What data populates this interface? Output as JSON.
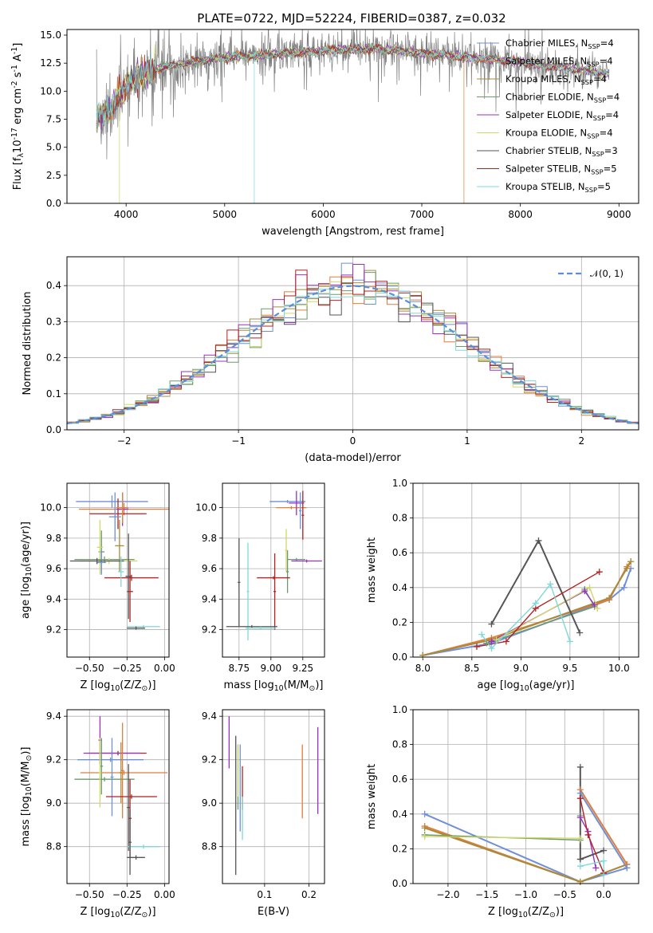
{
  "figure_title": "PLATE=0722, MJD=52224, FIBERID=0387, z=0.032",
  "legend_labels": [
    "Chabrier MILES, N$_{SSP}$=4",
    "Salpeter MILES, N$_{SSP}$=4",
    "Kroupa MILES, N$_{SSP}$=4",
    "Chabrier ELODIE, N$_{SSP}$=4",
    "Salpeter ELODIE, N$_{SSP}$=4",
    "Kroupa ELODIE, N$_{SSP}$=4",
    "Chabrier STELIB, N$_{SSP}$=3",
    "Salpeter STELIB, N$_{SSP}$=5",
    "Kroupa STELIB, N$_{SSP}$=5"
  ],
  "series_colors": [
    "#6f8fd8",
    "#e07e3a",
    "#a88a3c",
    "#6b9a6b",
    "#9b30c0",
    "#d0d86a",
    "#555555",
    "#b22222",
    "#7fd8d8"
  ],
  "chart_data": [
    {
      "id": "spectrum",
      "type": "line",
      "title": "PLATE=0722, MJD=52224, FIBERID=0387, z=0.032",
      "xlabel": "wavelength [Angstrom, rest frame]",
      "ylabel": "Flux [f$_\\lambda$10$^{-17}$ erg cm$^{-2}$ s$^{-1}$ A$^{-1}$]",
      "xlim": [
        3400,
        9200
      ],
      "ylim": [
        0,
        15.5
      ],
      "xticks": [
        4000,
        5000,
        6000,
        7000,
        8000,
        9000
      ],
      "yticks": [
        "0.0",
        "2.5",
        "5.0",
        "7.5",
        "10.0",
        "12.5",
        "15.0"
      ],
      "grid": false,
      "legend": "upper right",
      "data_range": [
        3700,
        8900
      ],
      "continuum_points": [
        [
          3700,
          7.5
        ],
        [
          3850,
          8.5
        ],
        [
          4000,
          10.5
        ],
        [
          4200,
          11.8
        ],
        [
          4600,
          12.5
        ],
        [
          5000,
          13.0
        ],
        [
          5500,
          13.3
        ],
        [
          6000,
          13.6
        ],
        [
          6500,
          13.8
        ],
        [
          7000,
          13.4
        ],
        [
          7500,
          13.0
        ],
        [
          8000,
          12.6
        ],
        [
          8500,
          12.0
        ],
        [
          8900,
          11.5
        ]
      ]
    },
    {
      "id": "residual-hist",
      "type": "histogram",
      "xlabel": "(data-model)/error",
      "ylabel": "Normed distribution",
      "xlim": [
        -2.5,
        2.5
      ],
      "ylim": [
        0,
        0.48
      ],
      "xticks": [
        "−2",
        "−1",
        "0",
        "1",
        "2"
      ],
      "yticks": [
        "0.0",
        "0.1",
        "0.2",
        "0.3",
        "0.4"
      ],
      "grid": true,
      "legend": "upper right",
      "reference_curve": {
        "name": "𝒩(0, 1)",
        "mean": 0,
        "sigma": 1,
        "color": "#5b8ddb"
      }
    },
    {
      "id": "age-vs-Z",
      "type": "errorbar",
      "xlabel": "Z [log$_{10}$(Z/Z$_\\odot$)]",
      "ylabel": "age  [log$_{10}$(age/yr)]",
      "xlim": [
        -0.65,
        0.03
      ],
      "ylim": [
        9.02,
        10.16
      ],
      "xticks": [
        "−0.50",
        "−0.25",
        "0.00"
      ],
      "yticks": [
        "9.2",
        "9.4",
        "9.6",
        "9.8",
        "10.0"
      ],
      "grid": true,
      "points": [
        {
          "x": -0.35,
          "xerr": 0.24,
          "y": 10.04,
          "yerr": 0.04,
          "c": 0
        },
        {
          "x": -0.27,
          "xerr": 0.3,
          "y": 9.99,
          "yerr": 0.04,
          "c": 1
        },
        {
          "x": -0.31,
          "xerr": 0.19,
          "y": 9.96,
          "yerr": 0.1,
          "c": 7
        },
        {
          "x": -0.28,
          "xerr": 0.04,
          "y": 9.99,
          "yerr": 0.11,
          "c": 4
        },
        {
          "x": -0.28,
          "xerr": 0.04,
          "y": 10.0,
          "yerr": 0.1,
          "c": 1
        },
        {
          "x": -0.33,
          "xerr": 0.04,
          "y": 9.94,
          "yerr": 0.16,
          "c": 0
        },
        {
          "x": -0.42,
          "xerr": 0.02,
          "y": 9.71,
          "yerr": 0.14,
          "c": 3
        },
        {
          "x": -0.43,
          "xerr": 0.02,
          "y": 9.74,
          "yerr": 0.18,
          "c": 5
        },
        {
          "x": -0.42,
          "xerr": 0.03,
          "y": 9.64,
          "yerr": 0.08,
          "c": 0
        },
        {
          "x": -0.3,
          "xerr": 0.03,
          "y": 9.75,
          "yerr": 0.17,
          "c": 2
        },
        {
          "x": -0.4,
          "xerr": 0.2,
          "y": 9.66,
          "yerr": 0.02,
          "c": 3
        },
        {
          "x": -0.37,
          "xerr": 0.19,
          "y": 9.65,
          "yerr": 0.02,
          "c": 5
        },
        {
          "x": -0.45,
          "xerr": 0.18,
          "y": 9.65,
          "yerr": 0.02,
          "c": 6
        },
        {
          "x": -0.22,
          "xerr": 0.18,
          "y": 9.54,
          "yerr": 0.02,
          "c": 7
        },
        {
          "x": -0.29,
          "xerr": 0.02,
          "y": 9.58,
          "yerr": 0.1,
          "c": 8
        },
        {
          "x": -0.24,
          "xerr": 0.02,
          "y": 9.55,
          "yerr": 0.28,
          "c": 6
        },
        {
          "x": -0.23,
          "xerr": 0.02,
          "y": 9.45,
          "yerr": 0.2,
          "c": 7
        },
        {
          "x": -0.14,
          "xerr": 0.11,
          "y": 9.22,
          "yerr": 0.01,
          "c": 8
        },
        {
          "x": -0.19,
          "xerr": 0.06,
          "y": 9.21,
          "yerr": 0.01,
          "c": 6
        }
      ]
    },
    {
      "id": "age-vs-mass",
      "type": "errorbar",
      "xlabel": "mass [log$_{10}$(M/M$_\\odot$)]",
      "ylabel": "",
      "xlim": [
        8.62,
        9.42
      ],
      "ylim": [
        9.02,
        10.16
      ],
      "xticks": [
        "8.75",
        "9.00",
        "9.25"
      ],
      "yticks": [
        "9.2",
        "9.4",
        "9.6",
        "9.8",
        "10.0"
      ],
      "grid": true,
      "points": [
        {
          "x": 9.13,
          "xerr": 0.14,
          "y": 10.04,
          "yerr": 0.01,
          "c": 0
        },
        {
          "x": 9.16,
          "xerr": 0.12,
          "y": 10.0,
          "yerr": 0.01,
          "c": 1
        },
        {
          "x": 9.2,
          "xerr": 0.06,
          "y": 10.03,
          "yerr": 0.08,
          "c": 4
        },
        {
          "x": 9.23,
          "xerr": 0.01,
          "y": 9.98,
          "yerr": 0.12,
          "c": 0
        },
        {
          "x": 9.25,
          "xerr": 0.01,
          "y": 9.95,
          "yerr": 0.16,
          "c": 7
        },
        {
          "x": 9.12,
          "xerr": 0.01,
          "y": 9.72,
          "yerr": 0.14,
          "c": 5
        },
        {
          "x": 9.2,
          "xerr": 0.07,
          "y": 9.66,
          "yerr": 0.01,
          "c": 3
        },
        {
          "x": 9.28,
          "xerr": 0.12,
          "y": 9.65,
          "yerr": 0.01,
          "c": 4
        },
        {
          "x": 9.13,
          "xerr": 0.01,
          "y": 9.58,
          "yerr": 0.14,
          "c": 3
        },
        {
          "x": 9.02,
          "xerr": 0.13,
          "y": 9.54,
          "yerr": 0.01,
          "c": 7
        },
        {
          "x": 9.03,
          "xerr": 0.01,
          "y": 9.45,
          "yerr": 0.25,
          "c": 7
        },
        {
          "x": 8.75,
          "xerr": 0.01,
          "y": 9.51,
          "yerr": 0.29,
          "c": 6
        },
        {
          "x": 8.82,
          "xerr": 0.01,
          "y": 9.45,
          "yerr": 0.32,
          "c": 8
        },
        {
          "x": 8.85,
          "xerr": 0.2,
          "y": 9.22,
          "yerr": 0.01,
          "c": 6
        },
        {
          "x": 8.92,
          "xerr": 0.12,
          "y": 9.21,
          "yerr": 0.01,
          "c": 8
        }
      ]
    },
    {
      "id": "mass-weight-vs-age",
      "type": "line",
      "xlabel": "age  [log$_{10}$(age/yr)]",
      "ylabel": "mass weight",
      "xlim": [
        7.9,
        10.2
      ],
      "ylim": [
        0,
        1.0
      ],
      "xticks": [
        "8.0",
        "8.5",
        "9.0",
        "9.5",
        "10.0"
      ],
      "yticks": [
        "0.0",
        "0.2",
        "0.4",
        "0.6",
        "0.8",
        "1.0"
      ],
      "grid": true,
      "series": [
        {
          "c": 0,
          "x": [
            8.0,
            8.7,
            9.9,
            10.05,
            10.12
          ],
          "y": [
            0.01,
            0.08,
            0.33,
            0.4,
            0.51
          ]
        },
        {
          "c": 1,
          "x": [
            8.0,
            8.7,
            9.9,
            10.08,
            10.12
          ],
          "y": [
            0.01,
            0.11,
            0.33,
            0.52,
            0.55
          ]
        },
        {
          "c": 2,
          "x": [
            8.0,
            8.7,
            9.9,
            10.08,
            10.12
          ],
          "y": [
            0.01,
            0.1,
            0.34,
            0.51,
            0.55
          ]
        },
        {
          "c": 3,
          "x": [
            8.65,
            9.75,
            9.65
          ],
          "y": [
            0.08,
            0.29,
            0.39
          ]
        },
        {
          "c": 4,
          "x": [
            8.7,
            9.65,
            9.75
          ],
          "y": [
            0.09,
            0.38,
            0.3
          ]
        },
        {
          "c": 5,
          "x": [
            8.75,
            9.7,
            9.78
          ],
          "y": [
            0.1,
            0.4,
            0.28
          ]
        },
        {
          "c": 6,
          "x": [
            8.7,
            9.18,
            9.6
          ],
          "y": [
            0.19,
            0.67,
            0.14
          ]
        },
        {
          "c": 7,
          "x": [
            8.55,
            8.85,
            9.15,
            9.8
          ],
          "y": [
            0.06,
            0.09,
            0.28,
            0.49
          ]
        },
        {
          "c": 8,
          "x": [
            8.6,
            8.7,
            9.15,
            9.3,
            9.5
          ],
          "y": [
            0.13,
            0.05,
            0.31,
            0.42,
            0.09
          ]
        }
      ]
    },
    {
      "id": "mass-vs-Z",
      "type": "errorbar",
      "xlabel": "Z [log$_{10}$(Z/Z$_\\odot$)]",
      "ylabel": "mass [log$_{10}$(M/M$_\\odot$)]",
      "xlim": [
        -0.65,
        0.03
      ],
      "ylim": [
        8.63,
        9.43
      ],
      "xticks": [
        "−0.50",
        "−0.25",
        "0.00"
      ],
      "yticks": [
        "8.8",
        "9.0",
        "9.2",
        "9.4"
      ],
      "grid": true,
      "points": [
        {
          "x": -0.36,
          "xerr": 0.22,
          "y": 9.2,
          "yerr": 0.01,
          "c": 0
        },
        {
          "x": -0.31,
          "xerr": 0.19,
          "y": 9.23,
          "yerr": 0.01,
          "c": 7
        },
        {
          "x": -0.35,
          "xerr": 0.19,
          "y": 9.23,
          "yerr": 0.01,
          "c": 4
        },
        {
          "x": -0.27,
          "xerr": 0.29,
          "y": 9.14,
          "yerr": 0.01,
          "c": 1
        },
        {
          "x": -0.4,
          "xerr": 0.2,
          "y": 9.11,
          "yerr": 0.01,
          "c": 3
        },
        {
          "x": -0.43,
          "xerr": 0.01,
          "y": 9.29,
          "yerr": 0.11,
          "c": 4
        },
        {
          "x": -0.42,
          "xerr": 0.01,
          "y": 9.17,
          "yerr": 0.13,
          "c": 3
        },
        {
          "x": -0.43,
          "xerr": 0.01,
          "y": 9.14,
          "yerr": 0.16,
          "c": 5
        },
        {
          "x": -0.35,
          "xerr": 0.01,
          "y": 9.12,
          "yerr": 0.18,
          "c": 0
        },
        {
          "x": -0.29,
          "xerr": 0.01,
          "y": 9.14,
          "yerr": 0.14,
          "c": 2
        },
        {
          "x": -0.28,
          "xerr": 0.01,
          "y": 9.15,
          "yerr": 0.22,
          "c": 1
        },
        {
          "x": -0.22,
          "xerr": 0.17,
          "y": 9.03,
          "yerr": 0.01,
          "c": 7
        },
        {
          "x": -0.24,
          "xerr": 0.01,
          "y": 8.98,
          "yerr": 0.2,
          "c": 6
        },
        {
          "x": -0.23,
          "xerr": 0.01,
          "y": 8.93,
          "yerr": 0.18,
          "c": 7
        },
        {
          "x": -0.14,
          "xerr": 0.11,
          "y": 8.8,
          "yerr": 0.01,
          "c": 8
        },
        {
          "x": -0.19,
          "xerr": 0.06,
          "y": 8.75,
          "yerr": 0.01,
          "c": 6
        },
        {
          "x": -0.23,
          "xerr": 0.01,
          "y": 8.82,
          "yerr": 0.15,
          "c": 6
        }
      ]
    },
    {
      "id": "mass-vs-ebv",
      "type": "errorbar",
      "xlabel": "E(B-V)",
      "ylabel": "",
      "xlim": [
        0.005,
        0.235
      ],
      "ylim": [
        8.63,
        9.43
      ],
      "xticks": [
        "0.1",
        "0.2"
      ],
      "yticks": [
        "8.8",
        "9.0",
        "9.2",
        "9.4"
      ],
      "grid": true,
      "points": [
        {
          "x": 0.02,
          "xerr": 0,
          "y": 9.28,
          "yerr": 0.12,
          "c": 4
        },
        {
          "x": 0.035,
          "xerr": 0,
          "y": 8.99,
          "yerr": 0.32,
          "c": 6
        },
        {
          "x": 0.04,
          "xerr": 0,
          "y": 9.12,
          "yerr": 0.15,
          "c": 3
        },
        {
          "x": 0.04,
          "xerr": 0,
          "y": 9.15,
          "yerr": 0.12,
          "c": 5
        },
        {
          "x": 0.045,
          "xerr": 0,
          "y": 9.07,
          "yerr": 0.2,
          "c": 0
        },
        {
          "x": 0.05,
          "xerr": 0,
          "y": 9.07,
          "yerr": 0.1,
          "c": 7
        },
        {
          "x": 0.05,
          "xerr": 0,
          "y": 8.93,
          "yerr": 0.1,
          "c": 8
        },
        {
          "x": 0.185,
          "xerr": 0,
          "y": 9.1,
          "yerr": 0.17,
          "c": 1
        },
        {
          "x": 0.22,
          "xerr": 0,
          "y": 9.15,
          "yerr": 0.2,
          "c": 4
        }
      ]
    },
    {
      "id": "mass-weight-vs-Z",
      "type": "line",
      "xlabel": "Z [log$_{10}$(Z/Z$_\\odot$)]",
      "ylabel": "mass weight",
      "xlim": [
        -2.45,
        0.45
      ],
      "ylim": [
        0,
        1.0
      ],
      "xticks": [
        "−2.0",
        "−1.5",
        "−1.0",
        "−0.5",
        "0.0"
      ],
      "yticks": [
        "0.0",
        "0.2",
        "0.4",
        "0.6",
        "0.8",
        "1.0"
      ],
      "grid": true,
      "series": [
        {
          "c": 0,
          "x": [
            -2.3,
            -0.3,
            0.3
          ],
          "y": [
            0.4,
            0.01,
            0.09
          ]
        },
        {
          "c": 1,
          "x": [
            -2.3,
            -0.3,
            0.3
          ],
          "y": [
            0.33,
            0.01,
            0.11
          ]
        },
        {
          "c": 2,
          "x": [
            -2.3,
            -0.3,
            0.3
          ],
          "y": [
            0.32,
            0.01,
            0.11
          ]
        },
        {
          "c": 1,
          "x": [
            -0.3,
            0.3
          ],
          "y": [
            0.54,
            0.11
          ]
        },
        {
          "c": 0,
          "x": [
            -0.3,
            0.3
          ],
          "y": [
            0.52,
            0.09
          ]
        },
        {
          "c": 3,
          "x": [
            -2.3,
            -0.3,
            -0.3
          ],
          "y": [
            0.28,
            0.25,
            0.39
          ]
        },
        {
          "c": 5,
          "x": [
            -2.3,
            -0.3,
            -0.3
          ],
          "y": [
            0.27,
            0.26,
            0.38
          ]
        },
        {
          "c": 4,
          "x": [
            -0.3,
            -0.2,
            -0.1
          ],
          "y": [
            0.38,
            0.3,
            0.09
          ]
        },
        {
          "c": 6,
          "x": [
            -0.3,
            -0.3,
            0.0,
            -0.3
          ],
          "y": [
            0.67,
            0.14,
            0.19,
            0.14
          ]
        },
        {
          "c": 7,
          "x": [
            -0.3,
            -0.2,
            0.0
          ],
          "y": [
            0.49,
            0.28,
            0.06
          ]
        },
        {
          "c": 8,
          "x": [
            -0.3,
            0.0,
            0.0
          ],
          "y": [
            0.1,
            0.13,
            0.05
          ]
        }
      ]
    }
  ]
}
